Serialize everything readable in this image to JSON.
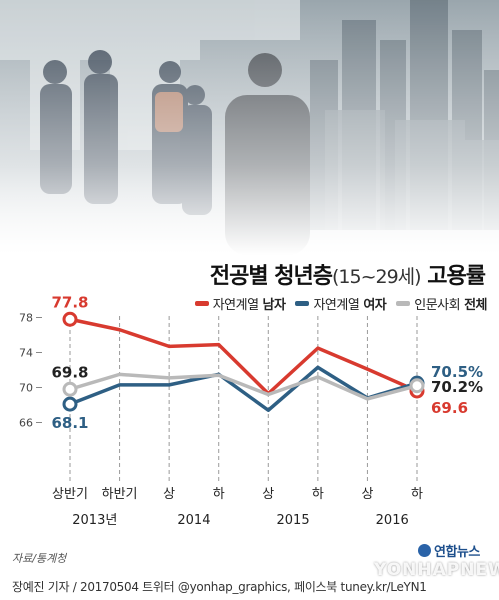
{
  "title": {
    "main": "전공별 청년층",
    "range": "(15~29세)",
    "metric": "고용률"
  },
  "legend": [
    {
      "name": "자연계열 남자",
      "name_plain": "자연계열",
      "name_bold": "남자",
      "color": "#d83a2f"
    },
    {
      "name": "자연계열 여자",
      "name_plain": "자연계열",
      "name_bold": "여자",
      "color": "#2e5f84"
    },
    {
      "name": "인문사회 전체",
      "name_plain": "인문사회",
      "name_bold": "전체",
      "color": "#b9b9b9"
    }
  ],
  "chart_data": {
    "type": "line",
    "title": "전공별 청년층(15~29세) 고용률",
    "x": [
      "상반기",
      "하반기",
      "상",
      "하",
      "상",
      "하",
      "상",
      "하"
    ],
    "year_groups": [
      {
        "label": "2013년",
        "from": 0,
        "to": 1
      },
      {
        "label": "2014",
        "from": 2,
        "to": 3
      },
      {
        "label": "2015",
        "from": 4,
        "to": 5
      },
      {
        "label": "2016",
        "from": 6,
        "to": 7
      }
    ],
    "yticks": [
      66,
      70,
      74,
      78
    ],
    "ylim": [
      64,
      80
    ],
    "grid": "vertical dashed",
    "series": [
      {
        "name": "자연계열 남자",
        "color": "#d83a2f",
        "values": [
          77.8,
          76.6,
          74.7,
          74.9,
          69.3,
          74.5,
          72.1,
          69.6
        ],
        "labels": [
          {
            "index": 0,
            "text": "77.8",
            "pos": "above"
          },
          {
            "index": 7,
            "text": "69.6",
            "pos": "right-below"
          }
        ]
      },
      {
        "name": "자연계열 여자",
        "color": "#2e5f84",
        "values": [
          68.1,
          70.3,
          70.3,
          71.5,
          67.4,
          72.3,
          68.8,
          70.5
        ],
        "labels": [
          {
            "index": 0,
            "text": "68.1",
            "pos": "below"
          },
          {
            "index": 7,
            "text": "70.5%",
            "pos": "right-above"
          }
        ]
      },
      {
        "name": "인문사회 전체",
        "color": "#b9b9b9",
        "values": [
          69.8,
          71.5,
          71.1,
          71.4,
          69.2,
          71.2,
          68.7,
          70.2
        ],
        "labels": [
          {
            "index": 0,
            "text": "69.8",
            "pos": "above"
          },
          {
            "index": 7,
            "text": "70.2%",
            "pos": "right"
          }
        ]
      }
    ]
  },
  "source": "자료/통계청",
  "credit": "장예진 기자 / 20170504 트위터 @yonhap_graphics, 페이스북 tuney.kr/LeYN1",
  "agency": "연합뉴스",
  "watermark": "YONHAPNEWS"
}
